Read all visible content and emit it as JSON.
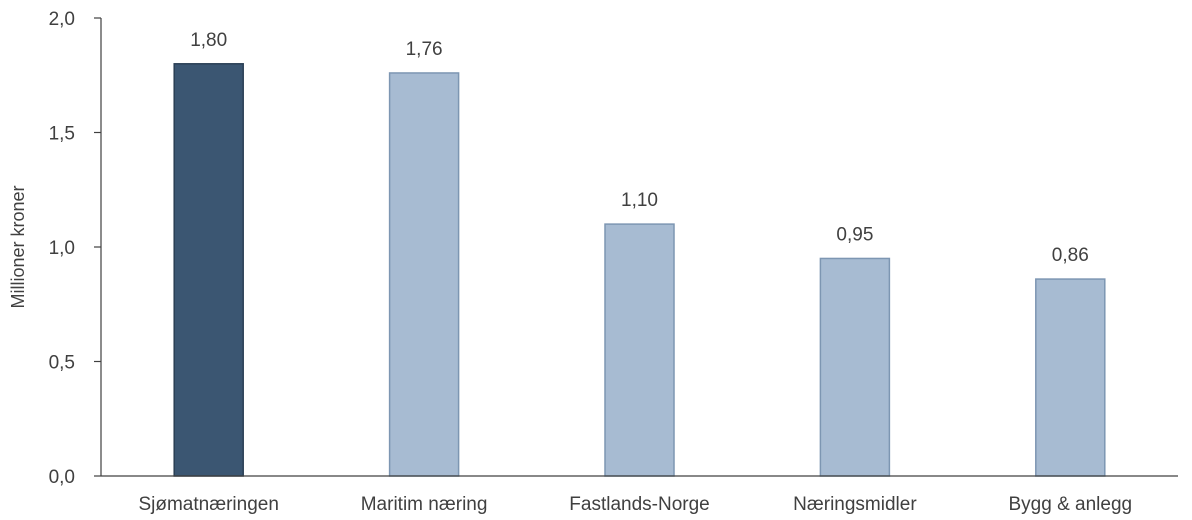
{
  "chart_data": {
    "type": "bar",
    "title": "",
    "xlabel": "",
    "ylabel": "Millioner kroner",
    "categories": [
      "Sjømatnæringen",
      "Maritim næring",
      "Fastlands-Norge",
      "Næringsmidler",
      "Bygg & anlegg"
    ],
    "values": [
      1.8,
      1.76,
      1.1,
      0.95,
      0.86
    ],
    "value_labels": [
      "1,80",
      "1,76",
      "1,10",
      "0,95",
      "0,86"
    ],
    "ylim": [
      0,
      2.0
    ],
    "yticks": [
      0,
      0.5,
      1.0,
      1.5,
      2.0
    ],
    "ytick_labels": [
      "0,0",
      "0,5",
      "1,0",
      "1,5",
      "2,0"
    ],
    "grid": false,
    "legend": "none",
    "colors": {
      "highlight": "#3b5672",
      "highlight_stroke": "#2a3f55",
      "default": "#a7bbd2",
      "default_stroke": "#7d96b2",
      "axis": "#404040"
    },
    "highlight_index": 0
  }
}
